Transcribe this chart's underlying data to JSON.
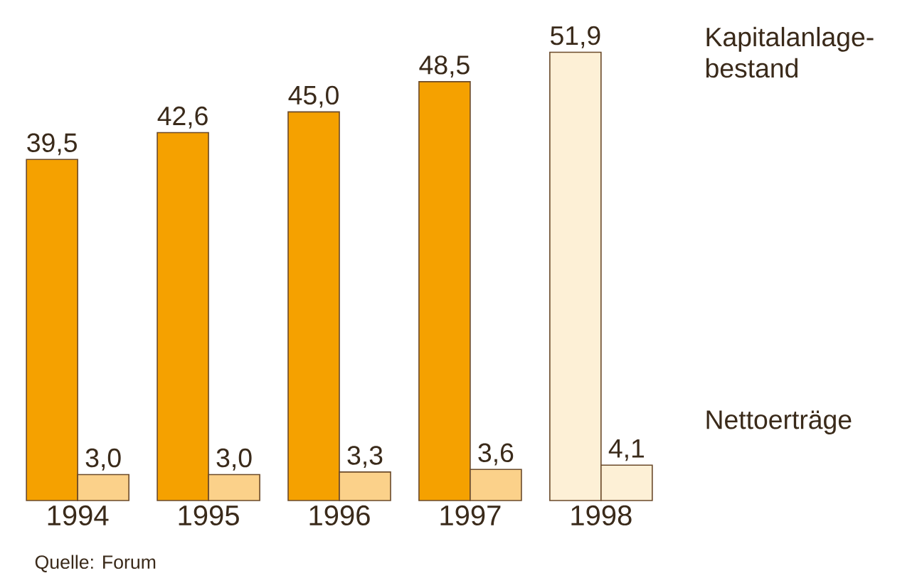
{
  "chart_data": {
    "type": "bar",
    "categories": [
      "1994",
      "1995",
      "1996",
      "1997",
      "1998"
    ],
    "series": [
      {
        "name": "Kapitalanlage-bestand",
        "colors": [
          "#f5a100",
          "#f5a100",
          "#f5a100",
          "#f5a100",
          "#fdf0d6"
        ],
        "values": [
          39.5,
          42.6,
          45.0,
          48.5,
          51.9
        ],
        "value_labels": [
          "39,5",
          "42,6",
          "45,0",
          "48,5",
          "51,9"
        ]
      },
      {
        "name": "Nettoerträge",
        "colors": [
          "#fbd18a",
          "#fbd18a",
          "#fbd18a",
          "#fbd18a",
          "#fdf0d6"
        ],
        "values": [
          3.0,
          3.0,
          3.3,
          3.6,
          4.1
        ],
        "value_labels": [
          "3,0",
          "3,0",
          "3,3",
          "3,6",
          "4,1"
        ]
      }
    ],
    "legend": false,
    "annotations": [
      "Quelle: Forum"
    ]
  }
}
